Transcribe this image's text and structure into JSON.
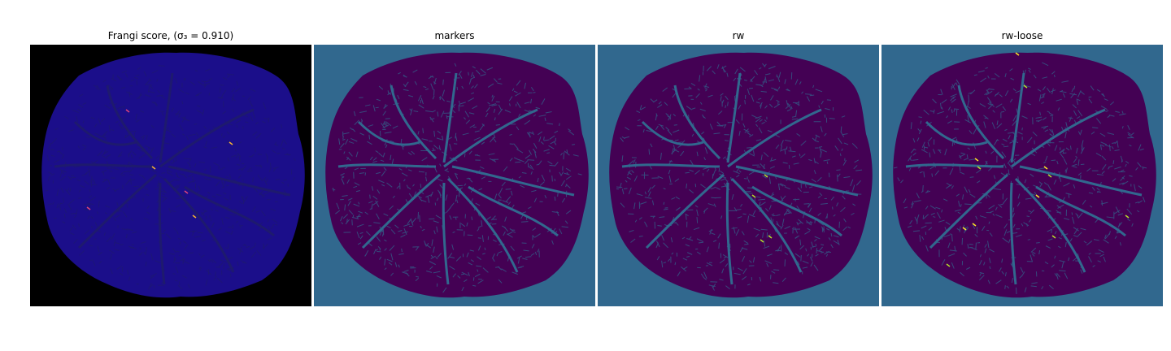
{
  "figure": {
    "panels": [
      {
        "id": "frangi",
        "title": "Frangi score, (σ₃ = 0.910)",
        "background": "#000000",
        "blob": "#1b0e8a",
        "lines": "#1e1a6e",
        "highlight": [
          "#e0447a",
          "#f7b531"
        ]
      },
      {
        "id": "markers",
        "title": "markers",
        "background": "#31688e",
        "blob": "#440154",
        "lines": "#31688e",
        "highlight": []
      },
      {
        "id": "rw",
        "title": "rw",
        "background": "#31688e",
        "blob": "#440154",
        "lines": "#31688e",
        "highlight": [
          "#b5de2b"
        ]
      },
      {
        "id": "rw-loose",
        "title": "rw-loose",
        "background": "#31688e",
        "blob": "#440154",
        "lines": "#31688e",
        "highlight": [
          "#fde725",
          "#b5de2b"
        ]
      }
    ]
  }
}
